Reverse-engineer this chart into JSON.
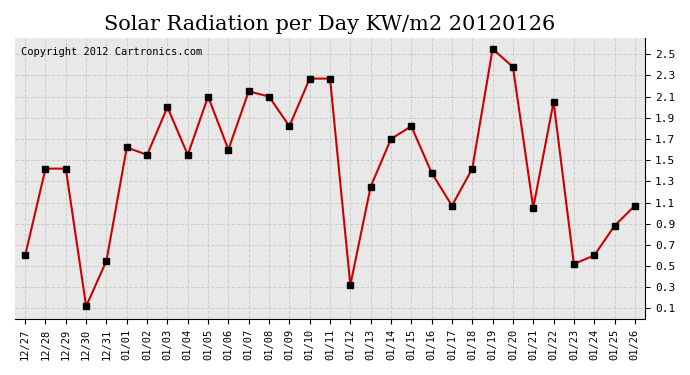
{
  "title": "Solar Radiation per Day KW/m2 20120126",
  "copyright_text": "Copyright 2012 Cartronics.com",
  "x_labels": [
    "12/27",
    "12/28",
    "12/29",
    "12/30",
    "12/31",
    "01/01",
    "01/02",
    "01/03",
    "01/04",
    "01/05",
    "01/06",
    "01/07",
    "01/08",
    "01/09",
    "01/10",
    "01/11",
    "01/12",
    "01/13",
    "01/14",
    "01/15",
    "01/16",
    "01/17",
    "01/18",
    "01/19",
    "01/20",
    "01/21",
    "01/22",
    "01/23",
    "01/24",
    "01/25",
    "01/26"
  ],
  "y_values": [
    0.6,
    1.42,
    1.42,
    0.12,
    0.55,
    1.62,
    1.55,
    2.0,
    1.55,
    2.1,
    1.6,
    2.15,
    2.1,
    1.82,
    2.27,
    2.27,
    0.32,
    1.25,
    1.7,
    1.82,
    1.38,
    1.07,
    1.42,
    2.55,
    2.38,
    1.05,
    2.05,
    0.52,
    0.6,
    0.88,
    1.07
  ],
  "line_color": "#cc0000",
  "marker": "s",
  "marker_color": "#000000",
  "marker_size": 4,
  "grid_color": "#cccccc",
  "bg_color": "#ffffff",
  "plot_bg_color": "#e8e8e8",
  "y_ticks": [
    0.1,
    0.3,
    0.5,
    0.7,
    0.9,
    1.1,
    1.3,
    1.5,
    1.7,
    1.9,
    2.1,
    2.3,
    2.5
  ],
  "ylim": [
    0.0,
    2.65
  ],
  "title_fontsize": 15,
  "copyright_fontsize": 7.5
}
